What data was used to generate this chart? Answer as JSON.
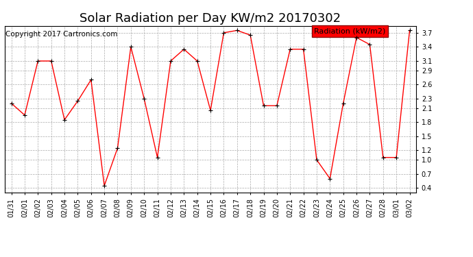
{
  "title": "Solar Radiation per Day KW/m2 20170302",
  "copyright": "Copyright 2017 Cartronics.com",
  "legend_label": "Radiation (kW/m2)",
  "dates": [
    "01/31",
    "02/01",
    "02/02",
    "02/03",
    "02/04",
    "02/05",
    "02/06",
    "02/07",
    "02/08",
    "02/09",
    "02/10",
    "02/11",
    "02/12",
    "02/13",
    "02/14",
    "02/15",
    "02/16",
    "02/17",
    "02/18",
    "02/19",
    "02/20",
    "02/21",
    "02/22",
    "02/23",
    "02/24",
    "02/25",
    "02/26",
    "02/27",
    "02/28",
    "03/01",
    "03/02"
  ],
  "values": [
    2.2,
    1.95,
    3.1,
    3.1,
    1.85,
    2.25,
    2.7,
    0.45,
    1.25,
    3.4,
    2.3,
    1.05,
    3.1,
    3.35,
    3.1,
    2.05,
    3.7,
    3.75,
    3.65,
    2.15,
    2.15,
    3.35,
    3.35,
    1.0,
    0.6,
    2.2,
    3.6,
    3.45,
    1.05,
    1.05,
    3.75
  ],
  "line_color": "red",
  "marker_color": "black",
  "bg_color": "#ffffff",
  "grid_color": "#aaaaaa",
  "ylim": [
    0.3,
    3.85
  ],
  "yticks": [
    0.4,
    0.7,
    1.0,
    1.2,
    1.5,
    1.8,
    2.1,
    2.3,
    2.6,
    2.9,
    3.1,
    3.4,
    3.7
  ],
  "title_fontsize": 13,
  "copyright_fontsize": 7.5,
  "legend_fontsize": 8,
  "tick_fontsize": 7
}
